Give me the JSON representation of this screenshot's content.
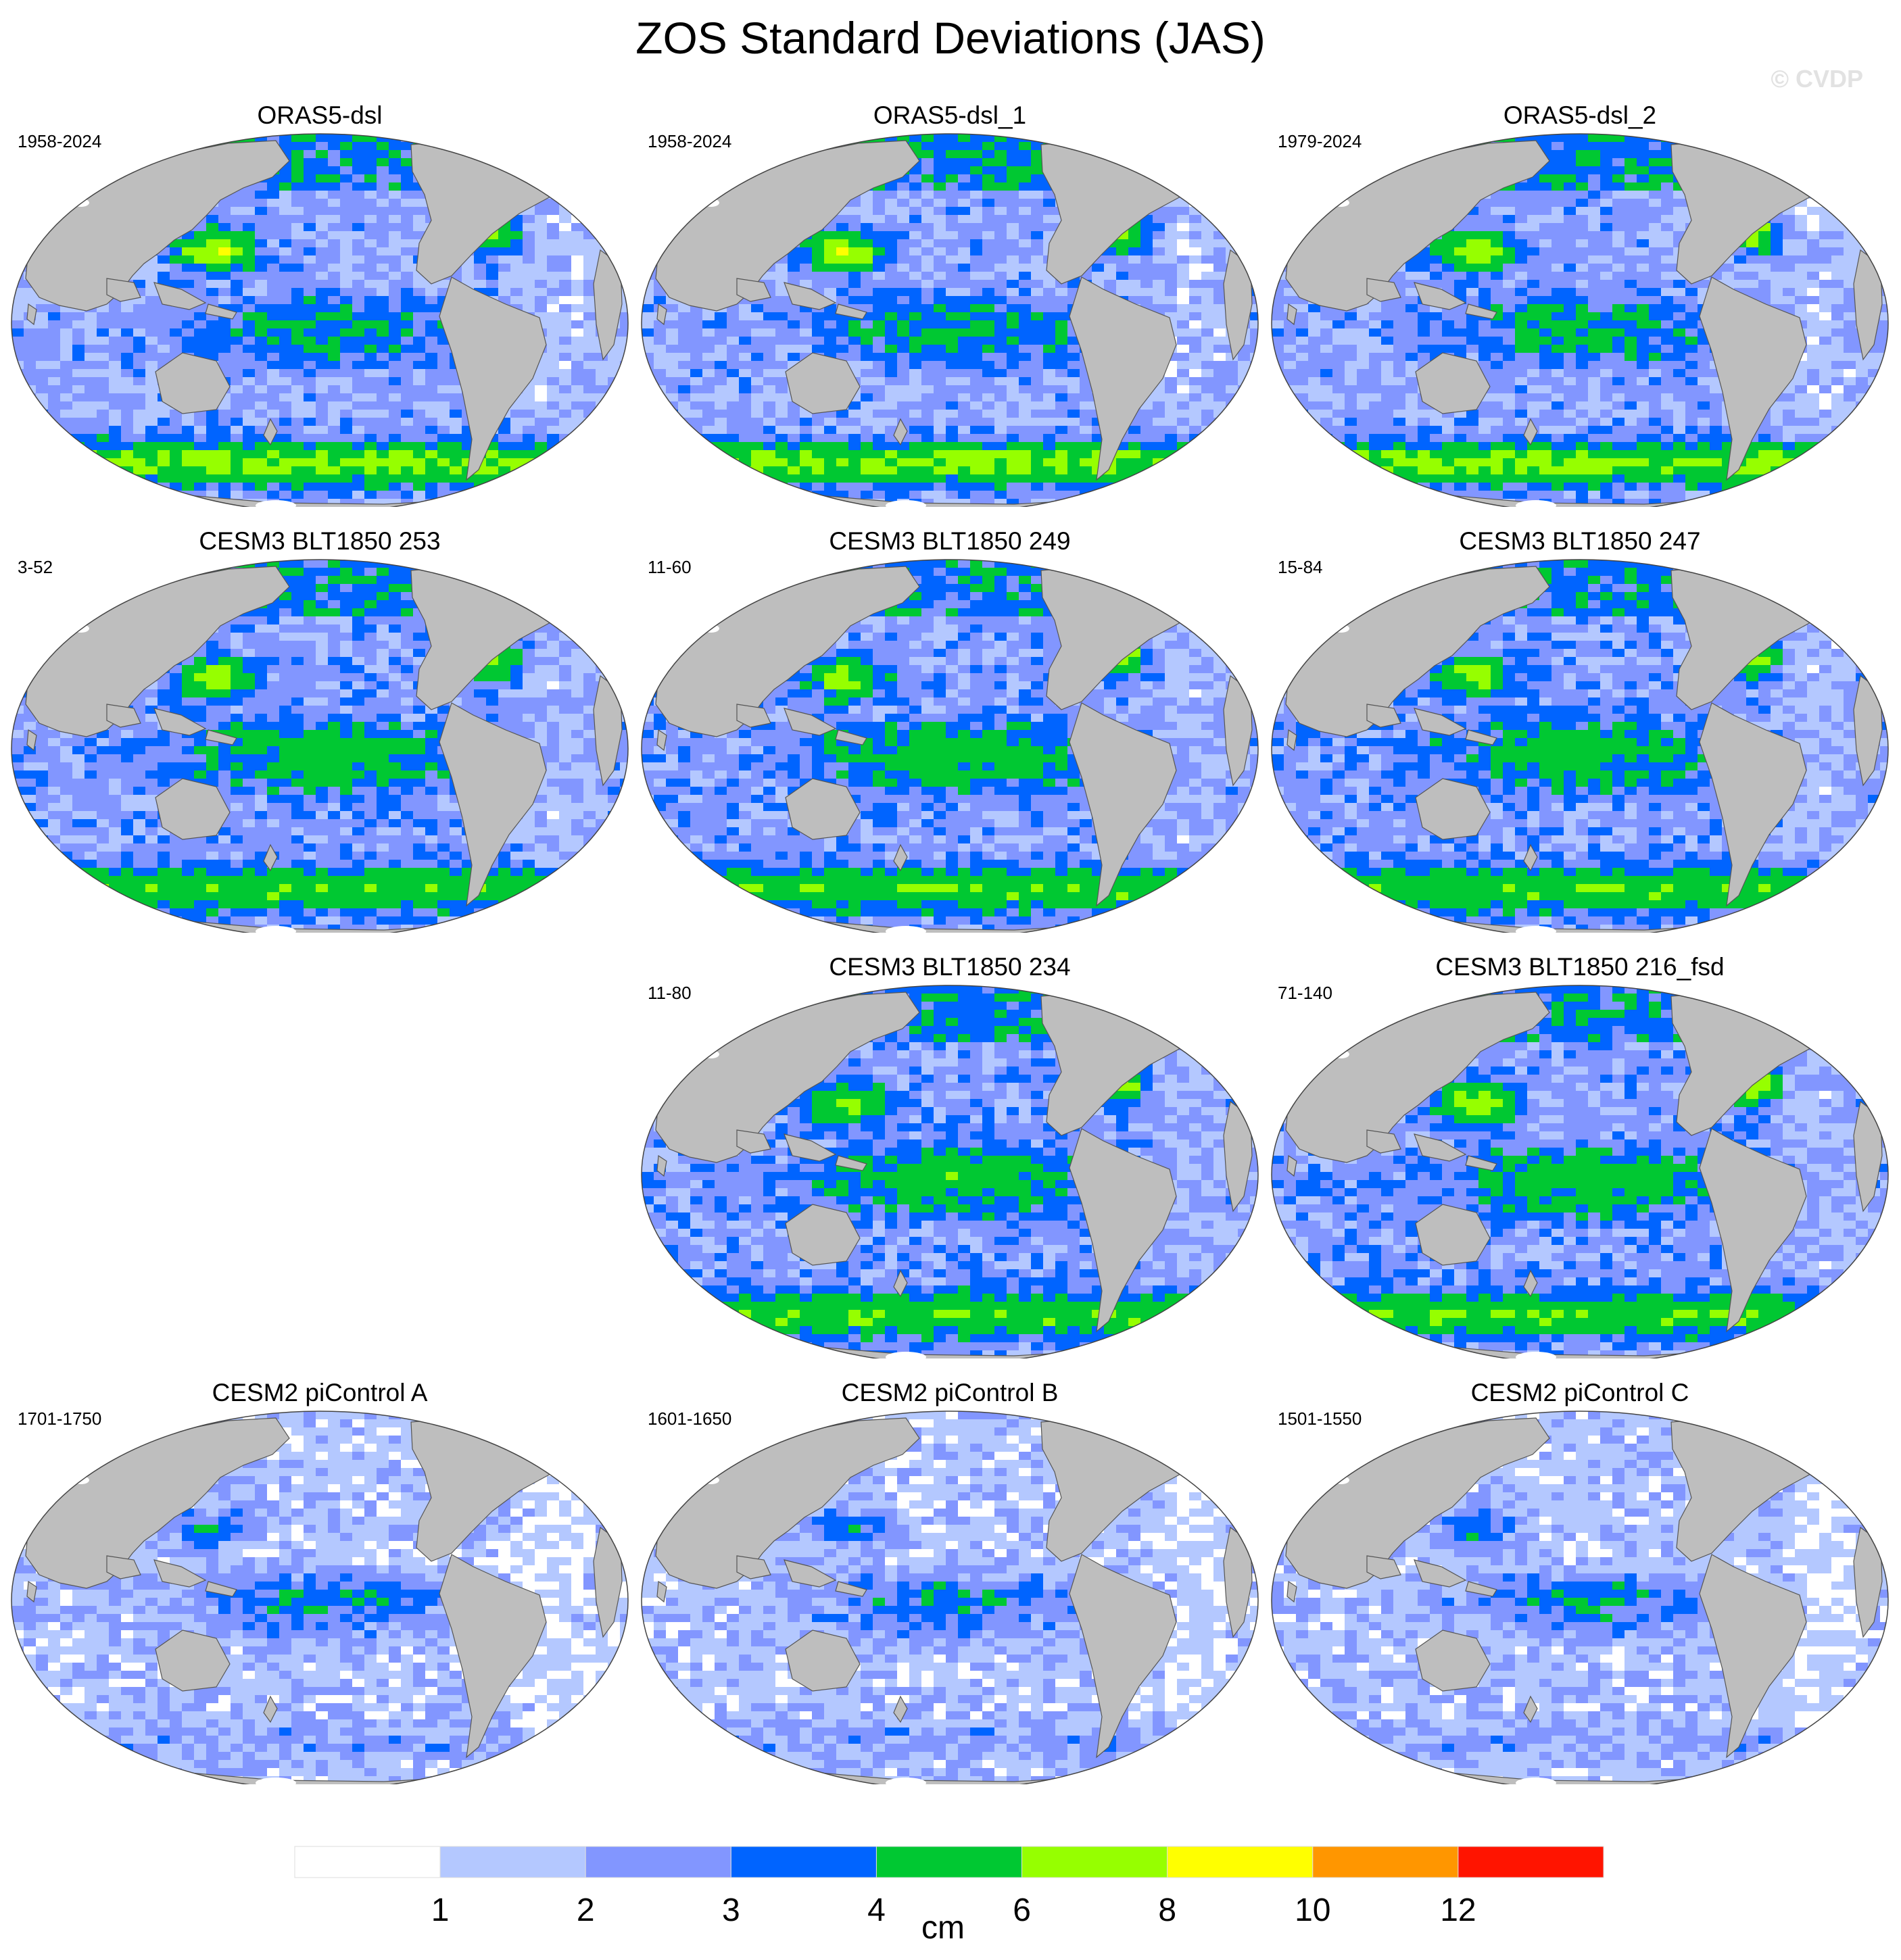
{
  "title": "ZOS Standard Deviations (JAS)",
  "watermark": "© CVDP",
  "panels": [
    {
      "title": "ORAS5-dsl",
      "years": "1958-2024",
      "kind": "obs"
    },
    {
      "title": "ORAS5-dsl_1",
      "years": "1958-2024",
      "kind": "obs"
    },
    {
      "title": "ORAS5-dsl_2",
      "years": "1979-2024",
      "kind": "obs"
    },
    {
      "title": "CESM3 BLT1850 253",
      "years": "3-52",
      "kind": "cesm3"
    },
    {
      "title": "CESM3 BLT1850 249",
      "years": "11-60",
      "kind": "cesm3"
    },
    {
      "title": "CESM3 BLT1850 247",
      "years": "15-84",
      "kind": "cesm3"
    },
    {
      "title": "CESM3 BLT1850 234",
      "years": "11-80",
      "kind": "cesm3"
    },
    {
      "title": "CESM3 BLT1850 216_fsd",
      "years": "71-140",
      "kind": "cesm3"
    },
    {
      "title": "CESM2 piControl A",
      "years": "1701-1750",
      "kind": "cesm2"
    },
    {
      "title": "CESM2 piControl B",
      "years": "1601-1650",
      "kind": "cesm2"
    },
    {
      "title": "CESM2 piControl C",
      "years": "1501-1550",
      "kind": "cesm2"
    }
  ],
  "colorbar": {
    "unit": "cm",
    "tick_labels": [
      "1",
      "2",
      "3",
      "4",
      "6",
      "8",
      "10",
      "12"
    ],
    "colors": [
      "#ffffff",
      "#b4c8ff",
      "#8296ff",
      "#0064ff",
      "#00c832",
      "#96ff00",
      "#ffff00",
      "#ff9600",
      "#ff1400"
    ]
  },
  "map_colors": {
    "land": "#bebebe",
    "ice": "#ffffff"
  }
}
